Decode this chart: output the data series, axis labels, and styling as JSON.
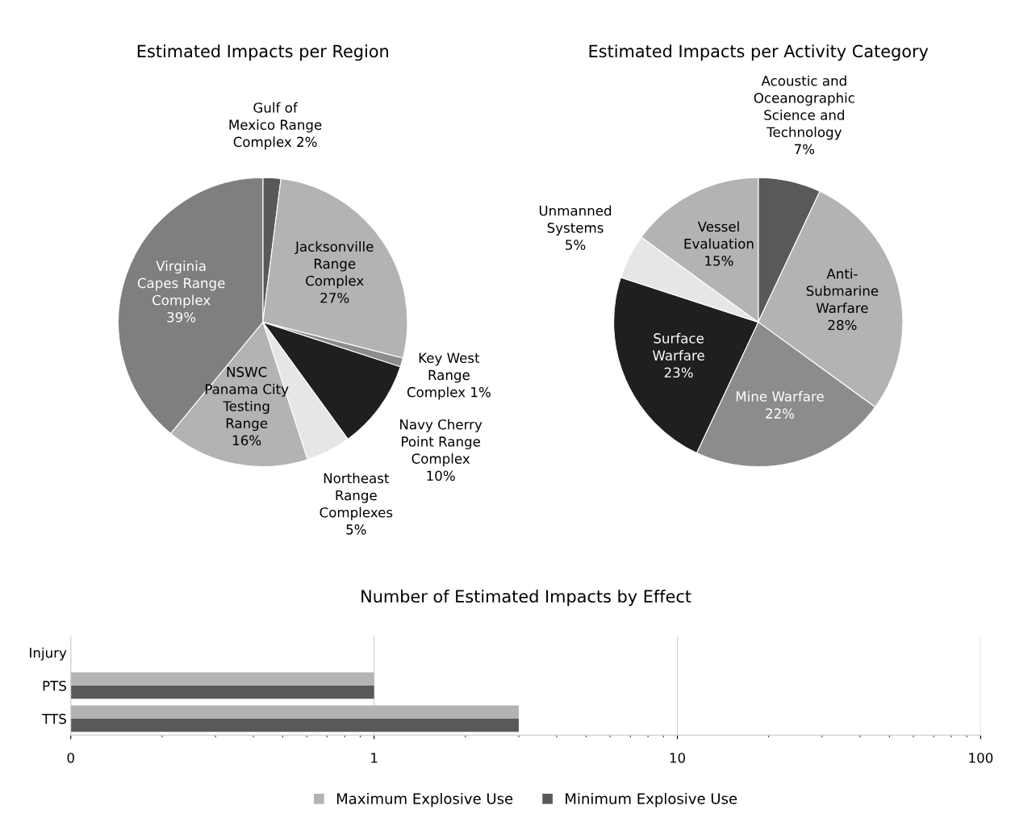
{
  "chart_data": [
    {
      "type": "pie",
      "title": "Estimated Impacts per Region",
      "categories": [
        "Gulf of\nMexico Range\nComplex",
        "Jacksonville\nRange\nComplex",
        "Key West\nRange\nComplex",
        "Navy Cherry\nPoint Range\nComplex",
        "Northeast\nRange\nComplexes",
        "NSWC\nPanama City\nTesting\nRange",
        "Virginia\nCapes Range\nComplex"
      ],
      "values": [
        2,
        27,
        1,
        10,
        5,
        16,
        39
      ],
      "value_labels": [
        "2%",
        "27%",
        "1%",
        "10%",
        "5%",
        "16%",
        "39%"
      ],
      "colors": [
        "#595959",
        "#b3b3b3",
        "#8c8c8c",
        "#1f1f1f",
        "#e6e6e6",
        "#b3b3b3",
        "#7f7f7f"
      ]
    },
    {
      "type": "pie",
      "title": "Estimated Impacts per Activity Category",
      "categories": [
        "Acoustic and\nOceanographic\nScience and\nTechnology",
        "Anti-\nSubmarine\nWarfare",
        "Mine Warfare",
        "Surface\nWarfare",
        "Unmanned\nSystems",
        "Vessel\nEvaluation"
      ],
      "values": [
        7,
        28,
        22,
        23,
        5,
        15
      ],
      "value_labels": [
        "7%",
        "28%",
        "22%",
        "23%",
        "5%",
        "15%"
      ],
      "colors": [
        "#595959",
        "#b3b3b3",
        "#8c8c8c",
        "#1f1f1f",
        "#e6e6e6",
        "#b3b3b3"
      ]
    },
    {
      "type": "bar",
      "title": "Number of Estimated Impacts by Effect",
      "orientation": "horizontal",
      "log": "x",
      "categories": [
        "Injury",
        "PTS",
        "TTS"
      ],
      "series": [
        {
          "name": "Maximum Explosive Use",
          "color": "#b3b3b3",
          "values": [
            null,
            1,
            3
          ]
        },
        {
          "name": "Minimum Explosive Use",
          "color": "#595959",
          "values": [
            null,
            1,
            3
          ]
        }
      ],
      "xlim": [
        0.1,
        100
      ],
      "xticks": [
        {
          "value": 0.1,
          "label": "0"
        },
        1,
        10,
        100
      ],
      "grid": "x",
      "legend": "bottom"
    }
  ]
}
